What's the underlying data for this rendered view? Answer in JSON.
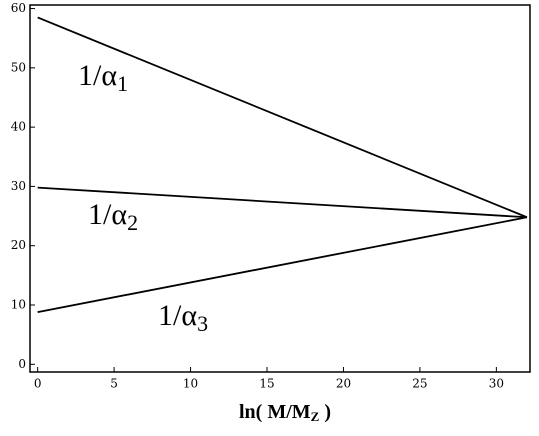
{
  "chart_data": {
    "type": "line",
    "x_label": {
      "text": "ln( M/M",
      "sub": "Z",
      "tail": " )"
    },
    "series": [
      {
        "name": "1/α",
        "sub": "1",
        "color": "#000000",
        "x": [
          0,
          32
        ],
        "values": [
          58.5,
          24.8
        ]
      },
      {
        "name": "1/α",
        "sub": "2",
        "color": "#000000",
        "x": [
          0,
          32
        ],
        "values": [
          29.8,
          24.8
        ]
      },
      {
        "name": "1/α",
        "sub": "3",
        "color": "#000000",
        "x": [
          0,
          32
        ],
        "values": [
          8.8,
          24.8
        ]
      }
    ],
    "xlim": [
      -0.5,
      32.2
    ],
    "xticks": [
      0,
      5,
      10,
      15,
      20,
      25,
      30
    ],
    "ylim": [
      -1.3,
      60.6
    ],
    "yticks": [
      0,
      10,
      20,
      30,
      40,
      50,
      60
    ]
  }
}
